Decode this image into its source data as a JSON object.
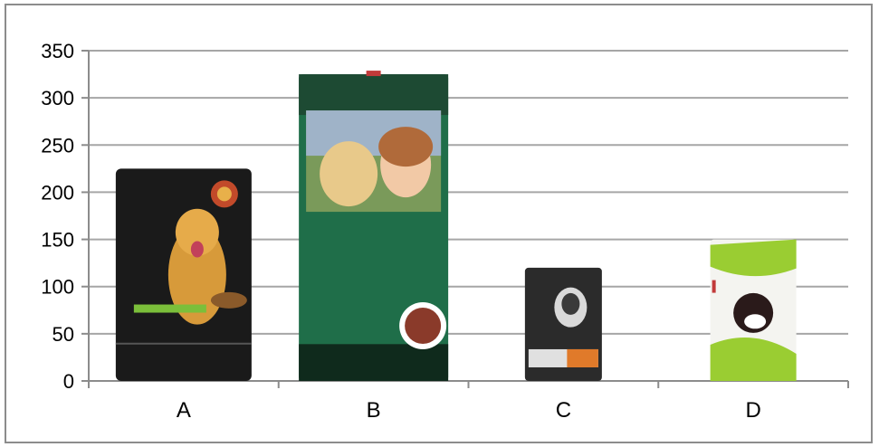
{
  "chart_data": {
    "type": "bar",
    "title": "",
    "xlabel": "",
    "ylabel": "",
    "categories": [
      "A",
      "B",
      "C",
      "D"
    ],
    "values": [
      225,
      325,
      120,
      150
    ],
    "ylim": [
      0,
      350
    ],
    "yticks": [
      0,
      50,
      100,
      150,
      200,
      250,
      300,
      350
    ],
    "grid": true,
    "bar_style": "pictograph (dog-food bag images)",
    "colors": {
      "gridline": "#a6a6a6",
      "axis": "#8c8c8c",
      "bag_a": "#1a1a1a",
      "bag_b": "#1f6e49",
      "bag_c": "#2b2b2b",
      "bag_d": "#9acd32"
    },
    "bar_icons": [
      "dog-food-bag-golden-retriever",
      "dog-food-bag-dog-and-girl",
      "dog-food-bag-grey-dog",
      "dog-food-bag-kitten"
    ]
  }
}
